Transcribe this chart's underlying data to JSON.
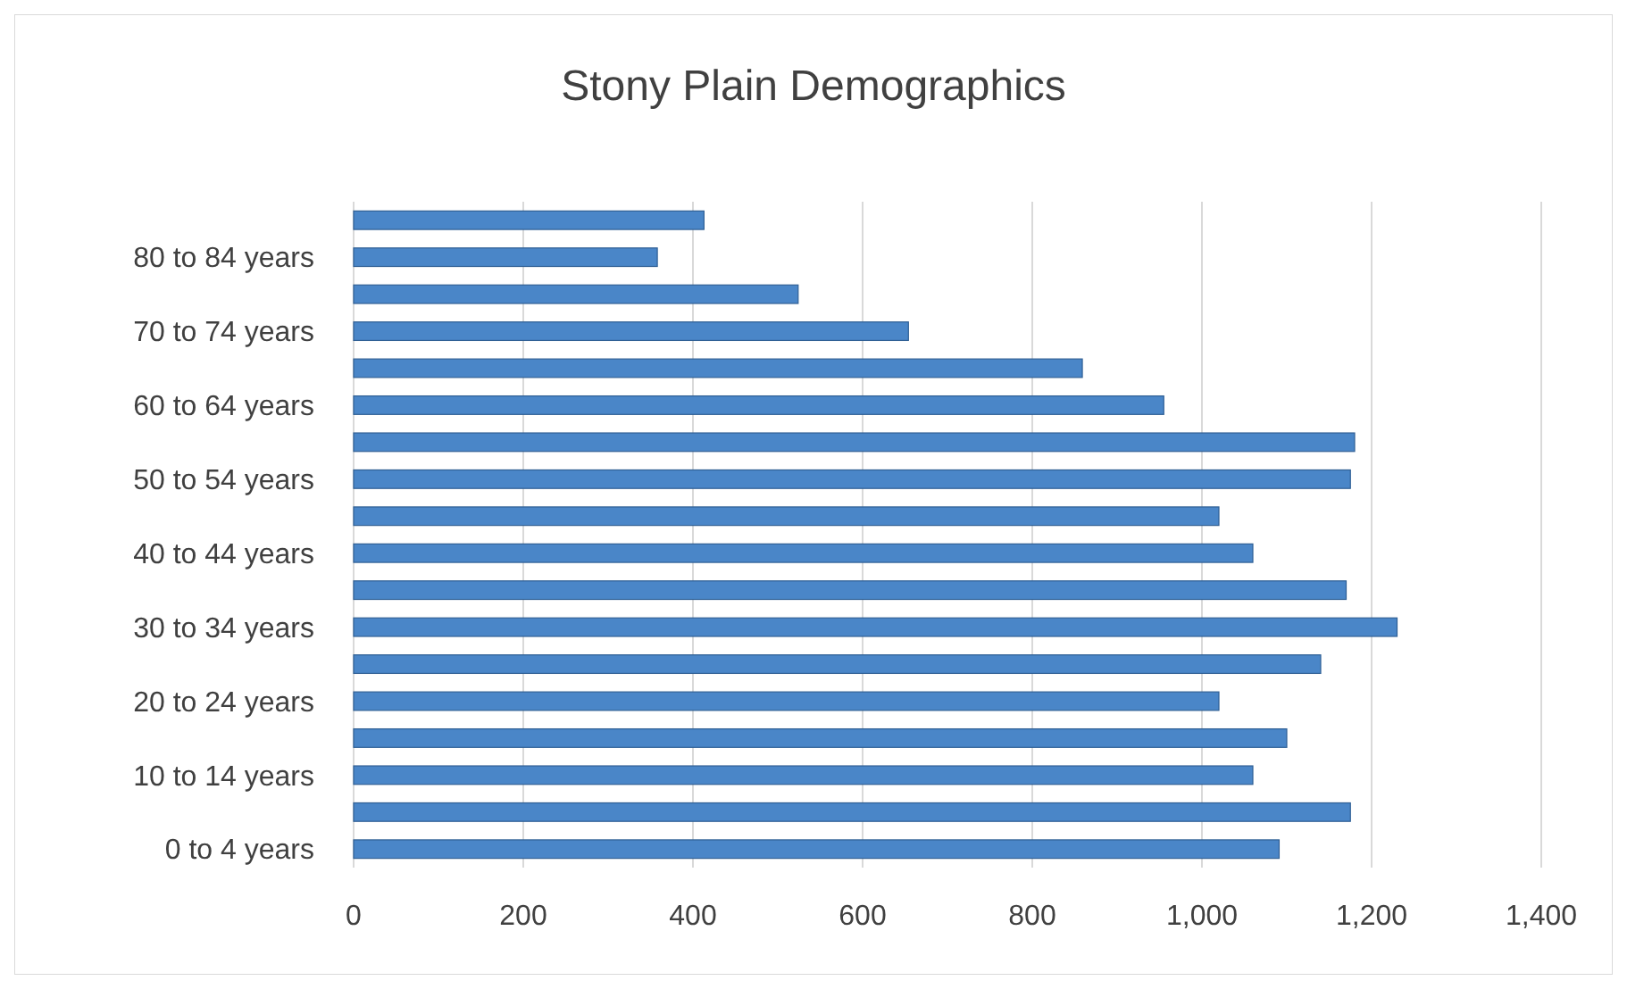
{
  "chart_data": {
    "type": "bar",
    "orientation": "horizontal",
    "title": "Stony Plain Demographics",
    "categories": [
      null,
      "80 to 84 years",
      null,
      "70 to 74 years",
      null,
      "60 to 64 years",
      null,
      "50 to 54 years",
      null,
      "40 to 44 years",
      null,
      "30 to 34 years",
      null,
      "20 to 24 years",
      null,
      "10 to 14 years",
      null,
      "0 to 4 years"
    ],
    "values": [
      413,
      358,
      524,
      654,
      859,
      955,
      1180,
      1175,
      1020,
      1060,
      1170,
      1230,
      1140,
      1020,
      1100,
      1060,
      1175,
      1091
    ],
    "color": "#4a86c8",
    "xlim": [
      0,
      1400
    ],
    "xticks": [
      0,
      {
        "value": 200,
        "label": "200"
      },
      {
        "value": 400,
        "label": "400"
      },
      {
        "value": 600,
        "label": "600"
      },
      {
        "value": 800,
        "label": "800"
      },
      {
        "value": 1000,
        "label": "1,000"
      },
      {
        "value": 1200,
        "label": "1,200"
      },
      {
        "value": 1400,
        "label": "1,400"
      }
    ],
    "grid": "x"
  }
}
